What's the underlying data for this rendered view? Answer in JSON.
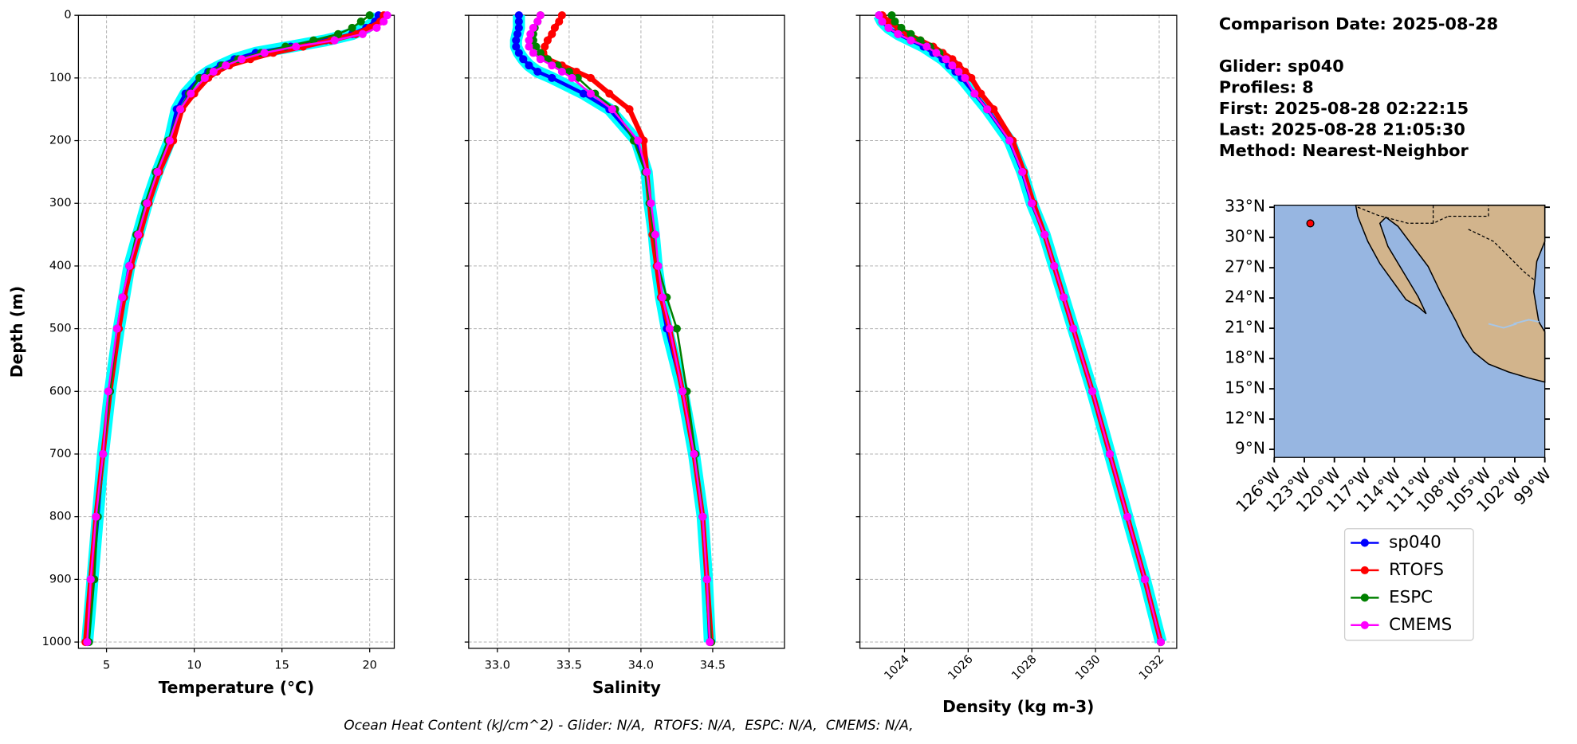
{
  "chart_data": [
    {
      "type": "line",
      "xlabel": "Temperature (°C)",
      "ylabel": "Depth (m)",
      "grid": true,
      "band_color": "cyan",
      "y_inverted": true,
      "xlim": [
        3.4,
        21.4
      ],
      "xticks": [
        5,
        10,
        15,
        20
      ],
      "ylim": [
        0,
        1010
      ],
      "yticks": [
        0,
        100,
        200,
        300,
        400,
        500,
        600,
        700,
        800,
        900,
        1000
      ],
      "y": [
        0,
        10,
        20,
        30,
        40,
        50,
        60,
        70,
        80,
        90,
        100,
        125,
        150,
        200,
        250,
        300,
        350,
        400,
        450,
        500,
        600,
        700,
        800,
        900,
        1000
      ],
      "series": [
        {
          "name": "sp040",
          "color": "#0000ff",
          "values": [
            20.5,
            20.3,
            19.8,
            19.0,
            17.5,
            15.5,
            13.5,
            12.3,
            11.5,
            10.8,
            10.3,
            9.5,
            9.0,
            8.6,
            7.9,
            7.3,
            6.8,
            6.3,
            6.0,
            5.7,
            5.2,
            4.8,
            4.5,
            4.2,
            3.9
          ]
        },
        {
          "name": "RTOFS",
          "color": "#ff0000",
          "values": [
            20.8,
            20.6,
            20.0,
            19.2,
            17.8,
            16.2,
            14.5,
            13.2,
            12.0,
            11.3,
            10.8,
            10.0,
            9.3,
            8.8,
            8.0,
            7.4,
            6.9,
            6.4,
            6.0,
            5.7,
            5.2,
            4.8,
            4.4,
            4.1,
            3.8
          ]
        },
        {
          "name": "ESPC",
          "color": "#008000",
          "values": [
            20.0,
            19.5,
            19.0,
            18.2,
            16.8,
            15.2,
            13.8,
            12.5,
            11.6,
            10.9,
            10.3,
            9.7,
            9.2,
            8.5,
            7.8,
            7.2,
            6.7,
            6.3,
            5.9,
            5.6,
            5.2,
            4.8,
            4.5,
            4.3,
            4.0
          ]
        },
        {
          "name": "CMEMS",
          "color": "#ff00ff",
          "values": [
            21.0,
            20.8,
            20.4,
            19.6,
            18.0,
            15.8,
            14.0,
            12.7,
            11.8,
            11.1,
            10.6,
            9.8,
            9.2,
            8.6,
            7.9,
            7.3,
            6.8,
            6.3,
            5.9,
            5.6,
            5.1,
            4.8,
            4.4,
            4.1,
            3.9
          ]
        }
      ]
    },
    {
      "type": "line",
      "xlabel": "Salinity",
      "grid": true,
      "band_color": "cyan",
      "y_inverted": true,
      "xlim": [
        32.8,
        35.0
      ],
      "xticks": [
        {
          "value": 33.0,
          "label": "33.0"
        },
        33.5,
        {
          "value": 34.0,
          "label": "34.0"
        },
        34.5
      ],
      "ylim": [
        0,
        1010
      ],
      "yticks": [
        0,
        100,
        200,
        300,
        400,
        500,
        600,
        700,
        800,
        900,
        1000
      ],
      "y": [
        0,
        10,
        20,
        30,
        40,
        50,
        60,
        70,
        80,
        90,
        100,
        125,
        150,
        200,
        250,
        300,
        350,
        400,
        450,
        500,
        600,
        700,
        800,
        900,
        1000
      ],
      "series": [
        {
          "name": "sp040",
          "color": "#0000ff",
          "values": [
            33.15,
            33.15,
            33.15,
            33.14,
            33.13,
            33.13,
            33.15,
            33.18,
            33.22,
            33.28,
            33.38,
            33.6,
            33.78,
            33.97,
            34.04,
            34.06,
            34.09,
            34.11,
            34.14,
            34.18,
            34.29,
            34.37,
            34.43,
            34.46,
            34.48
          ]
        },
        {
          "name": "RTOFS",
          "color": "#ff0000",
          "values": [
            33.45,
            33.43,
            33.4,
            33.38,
            33.35,
            33.33,
            33.32,
            33.35,
            33.45,
            33.55,
            33.65,
            33.78,
            33.92,
            34.02,
            34.04,
            34.06,
            34.08,
            34.11,
            34.14,
            34.2,
            34.29,
            34.37,
            34.43,
            34.46,
            34.49
          ]
        },
        {
          "name": "ESPC",
          "color": "#008000",
          "values": [
            33.3,
            33.28,
            33.26,
            33.25,
            33.25,
            33.27,
            33.3,
            33.35,
            33.42,
            33.5,
            33.56,
            33.68,
            33.82,
            33.95,
            34.03,
            34.06,
            34.09,
            34.12,
            34.18,
            34.25,
            34.32,
            34.38,
            34.43,
            34.46,
            34.49
          ]
        },
        {
          "name": "CMEMS",
          "color": "#ff00ff",
          "values": [
            33.3,
            33.28,
            33.25,
            33.23,
            33.22,
            33.22,
            33.25,
            33.3,
            33.38,
            33.45,
            33.52,
            33.65,
            33.8,
            33.98,
            34.04,
            34.07,
            34.1,
            34.12,
            34.15,
            34.2,
            34.29,
            34.37,
            34.43,
            34.46,
            34.48
          ]
        }
      ]
    },
    {
      "type": "line",
      "xlabel": "Density (kg m-3)",
      "grid": true,
      "band_color": "cyan",
      "y_inverted": true,
      "xtick_rotation": 45,
      "xlim": [
        1022.6,
        1032.55
      ],
      "xticks": [
        1024,
        1026,
        1028,
        1030,
        1032
      ],
      "ylim": [
        0,
        1010
      ],
      "yticks": [
        0,
        100,
        200,
        300,
        400,
        500,
        600,
        700,
        800,
        900,
        1000
      ],
      "y": [
        0,
        10,
        20,
        30,
        40,
        50,
        60,
        70,
        80,
        90,
        100,
        125,
        150,
        200,
        250,
        300,
        350,
        400,
        450,
        500,
        600,
        700,
        800,
        900,
        1000
      ],
      "series": [
        {
          "name": "sp040",
          "color": "#0000ff",
          "values": [
            1023.2,
            1023.3,
            1023.5,
            1023.8,
            1024.2,
            1024.6,
            1024.9,
            1025.2,
            1025.4,
            1025.6,
            1025.8,
            1026.2,
            1026.6,
            1027.3,
            1027.7,
            1028.0,
            1028.4,
            1028.7,
            1029.0,
            1029.3,
            1029.9,
            1030.45,
            1031.0,
            1031.55,
            1032.05
          ]
        },
        {
          "name": "RTOFS",
          "color": "#ff0000",
          "values": [
            1023.3,
            1023.5,
            1023.8,
            1024.1,
            1024.5,
            1024.9,
            1025.2,
            1025.5,
            1025.7,
            1025.9,
            1026.1,
            1026.4,
            1026.8,
            1027.4,
            1027.75,
            1028.05,
            1028.4,
            1028.7,
            1029.0,
            1029.3,
            1029.9,
            1030.45,
            1031.0,
            1031.55,
            1032.05
          ]
        },
        {
          "name": "ESPC",
          "color": "#008000",
          "values": [
            1023.6,
            1023.7,
            1023.9,
            1024.2,
            1024.5,
            1024.8,
            1025.1,
            1025.3,
            1025.5,
            1025.7,
            1025.9,
            1026.2,
            1026.6,
            1027.3,
            1027.7,
            1028.0,
            1028.4,
            1028.7,
            1029.0,
            1029.3,
            1029.9,
            1030.45,
            1031.0,
            1031.55,
            1032.05
          ]
        },
        {
          "name": "CMEMS",
          "color": "#ff00ff",
          "values": [
            1023.2,
            1023.3,
            1023.5,
            1023.8,
            1024.2,
            1024.7,
            1025.0,
            1025.3,
            1025.5,
            1025.7,
            1025.9,
            1026.2,
            1026.6,
            1027.3,
            1027.7,
            1028.0,
            1028.4,
            1028.7,
            1029.0,
            1029.3,
            1029.9,
            1030.45,
            1031.0,
            1031.55,
            1032.05
          ]
        }
      ]
    }
  ],
  "info": {
    "lines": [
      "Comparison Date: 2025-08-28",
      "Glider: sp040",
      "Profiles: 8",
      "First: 2025-08-28 02:22:15",
      "Last: 2025-08-28 21:05:30",
      "Method: Nearest-Neighbor"
    ]
  },
  "map": {
    "lonlim": [
      -126,
      -99
    ],
    "latlim": [
      8.2,
      33.2
    ],
    "ocean_color": "#97b6e1",
    "land_color": "#d2b48c",
    "glider_position": {
      "lon": -122.4,
      "lat": 31.4,
      "color": "#ff0000"
    },
    "latticks": [
      {
        "value": 33,
        "label": "33°N"
      },
      {
        "value": 30,
        "label": "30°N"
      },
      {
        "value": 27,
        "label": "27°N"
      },
      {
        "value": 24,
        "label": "24°N"
      },
      {
        "value": 21,
        "label": "21°N"
      },
      {
        "value": 18,
        "label": "18°N"
      },
      {
        "value": 15,
        "label": "15°N"
      },
      {
        "value": 12,
        "label": "12°N"
      },
      {
        "value": 9,
        "label": "9°N"
      }
    ],
    "lonticks": [
      {
        "value": -126,
        "label": "126°W"
      },
      {
        "value": -123,
        "label": "123°W"
      },
      {
        "value": -120,
        "label": "120°W"
      },
      {
        "value": -117,
        "label": "117°W"
      },
      {
        "value": -114,
        "label": "114°W"
      },
      {
        "value": -111,
        "label": "111°W"
      },
      {
        "value": -108,
        "label": "108°W"
      },
      {
        "value": -105,
        "label": "105°W"
      },
      {
        "value": -102,
        "label": "102°W"
      },
      {
        "value": -99,
        "label": "99°W"
      }
    ]
  },
  "footer": "Ocean Heat Content (kJ/cm^2) - Glider: N/A,  RTOFS: N/A,  ESPC: N/A,  CMEMS: N/A,"
}
